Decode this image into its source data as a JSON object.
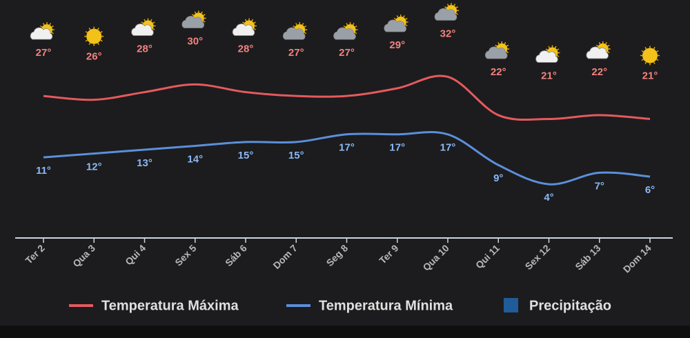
{
  "chart_data": {
    "type": "line",
    "categories": [
      "Ter 2",
      "Qua 3",
      "Qui 4",
      "Sex 5",
      "Sáb 6",
      "Dom 7",
      "Seg 8",
      "Ter 9",
      "Qua 10",
      "Qui 11",
      "Sex 12",
      "Sáb 13",
      "Dom 14"
    ],
    "series": [
      {
        "name": "Temperatura Máxima",
        "color": "#e55a5d",
        "values": [
          27,
          26,
          28,
          30,
          28,
          27,
          27,
          29,
          32,
          22,
          21,
          22,
          21
        ],
        "value_labels": [
          "27°",
          "26°",
          "28°",
          "30°",
          "28°",
          "27°",
          "27°",
          "29°",
          "32°",
          "22°",
          "21°",
          "22°",
          "21°"
        ]
      },
      {
        "name": "Temperatura Mínima",
        "color": "#5b8fdb",
        "values": [
          11,
          12,
          13,
          14,
          15,
          15,
          17,
          17,
          17,
          9,
          4,
          7,
          6
        ],
        "value_labels": [
          "11°",
          "12°",
          "13°",
          "14°",
          "15°",
          "15°",
          "17°",
          "17°",
          "17°",
          "9°",
          "4°",
          "7°",
          "6°"
        ]
      },
      {
        "name": "Precipitação",
        "color": "#1f5c99"
      }
    ],
    "ylim": [
      -10,
      52
    ]
  }
}
